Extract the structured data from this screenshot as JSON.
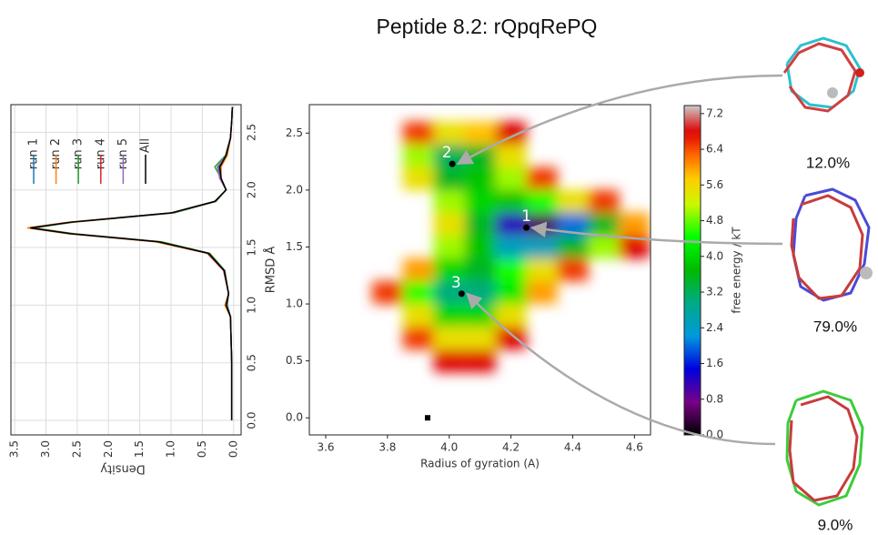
{
  "chart_data": [
    {
      "type": "line",
      "orientation": "rotated",
      "ylabel": "Density",
      "x": [
        0,
        0.5,
        0.9,
        1.0,
        1.1,
        1.3,
        1.45,
        1.55,
        1.62,
        1.67,
        1.72,
        1.8,
        1.9,
        2.0,
        2.1,
        2.2,
        2.3,
        2.45,
        2.6,
        2.72
      ],
      "series": [
        {
          "name": "run 1",
          "color": "#1f77b4",
          "values": [
            0.03,
            0.03,
            0.05,
            0.1,
            0.08,
            0.15,
            0.4,
            1.2,
            2.6,
            3.2,
            2.6,
            1.0,
            0.3,
            0.12,
            0.22,
            0.24,
            0.12,
            0.05,
            0.03,
            0.02
          ]
        },
        {
          "name": "run 2",
          "color": "#ff7f0e",
          "values": [
            0.03,
            0.03,
            0.05,
            0.14,
            0.08,
            0.15,
            0.42,
            1.25,
            2.65,
            3.3,
            2.65,
            1.0,
            0.3,
            0.12,
            0.2,
            0.2,
            0.1,
            0.05,
            0.03,
            0.02
          ]
        },
        {
          "name": "run 3",
          "color": "#2ca02c",
          "values": [
            0.03,
            0.03,
            0.05,
            0.11,
            0.08,
            0.14,
            0.38,
            1.15,
            2.55,
            3.2,
            2.55,
            0.95,
            0.28,
            0.12,
            0.2,
            0.3,
            0.13,
            0.05,
            0.03,
            0.02
          ]
        },
        {
          "name": "run 4",
          "color": "#d62728",
          "values": [
            0.03,
            0.03,
            0.05,
            0.12,
            0.08,
            0.16,
            0.42,
            1.2,
            2.6,
            3.25,
            2.6,
            1.0,
            0.3,
            0.12,
            0.2,
            0.22,
            0.12,
            0.05,
            0.03,
            0.02
          ]
        },
        {
          "name": "run 5",
          "color": "#9467bd",
          "values": [
            0.03,
            0.03,
            0.05,
            0.12,
            0.08,
            0.15,
            0.4,
            1.2,
            2.6,
            3.25,
            2.6,
            1.0,
            0.3,
            0.12,
            0.22,
            0.26,
            0.12,
            0.05,
            0.03,
            0.02
          ]
        },
        {
          "name": "All",
          "color": "#000000",
          "values": [
            0.03,
            0.03,
            0.05,
            0.12,
            0.08,
            0.15,
            0.4,
            1.2,
            2.6,
            3.25,
            2.6,
            1.0,
            0.3,
            0.12,
            0.2,
            0.22,
            0.12,
            0.05,
            0.03,
            0.02
          ]
        }
      ],
      "xlim": [
        -0.126,
        2.74
      ],
      "xticks": [
        {
          "value": 0,
          "label": "0.0"
        },
        0.5,
        {
          "value": 1,
          "label": "1.0"
        },
        1.5,
        {
          "value": 2,
          "label": "2.0"
        },
        2.5
      ],
      "ylim": [
        3.56,
        -0.12
      ],
      "yticks": [
        3.5,
        {
          "value": 3,
          "label": "3.0"
        },
        2.5,
        {
          "value": 2,
          "label": "2.0"
        },
        1.5,
        {
          "value": 1,
          "label": "1.0"
        },
        0.5,
        {
          "value": 0,
          "label": "0.0"
        }
      ],
      "grid": true
    },
    {
      "type": "heatmap",
      "title": "Peptide 8.2: rQpqRePQ",
      "xlabel": "Radius of gyration (A)",
      "ylabel": "RMSD Å",
      "x": [
        3.8,
        3.9,
        4.0,
        4.1,
        4.2,
        4.3,
        4.4,
        4.5,
        4.6
      ],
      "y": [
        2.5,
        2.3,
        2.1,
        1.9,
        1.7,
        1.5,
        1.3,
        1.1,
        0.9,
        0.7,
        0.5
      ],
      "z": [
        [
          null,
          6.5,
          5.5,
          5.8,
          6.8,
          null,
          null,
          null,
          null
        ],
        [
          null,
          5.0,
          3.2,
          3.5,
          5.5,
          null,
          null,
          null,
          null
        ],
        [
          null,
          5.5,
          3.5,
          3.8,
          5.0,
          6.5,
          null,
          null,
          null
        ],
        [
          null,
          null,
          5.0,
          4.0,
          3.8,
          4.5,
          5.5,
          6.5,
          null
        ],
        [
          null,
          null,
          5.5,
          3.5,
          1.2,
          0.5,
          2.0,
          3.5,
          6.0
        ],
        [
          null,
          null,
          5.0,
          3.8,
          2.5,
          2.5,
          3.5,
          5.0,
          6.8
        ],
        [
          null,
          6.0,
          4.0,
          3.5,
          4.5,
          5.5,
          6.5,
          null,
          null
        ],
        [
          6.5,
          4.5,
          3.0,
          3.0,
          4.2,
          6.0,
          null,
          null,
          null
        ],
        [
          null,
          5.5,
          4.0,
          4.0,
          5.5,
          null,
          null,
          null,
          null
        ],
        [
          null,
          6.5,
          5.5,
          5.5,
          6.8,
          null,
          null,
          null,
          null
        ],
        [
          null,
          null,
          6.8,
          6.8,
          null,
          null,
          null,
          null,
          null
        ]
      ],
      "xlim": [
        3.547,
        4.652
      ],
      "xticks": [
        3.6,
        3.8,
        {
          "value": 4,
          "label": "4.0"
        },
        4.2,
        4.4,
        4.6
      ],
      "ylim": [
        -0.15,
        2.75
      ],
      "yticks": [
        {
          "value": 0,
          "label": "0.0"
        },
        0.5,
        {
          "value": 1,
          "label": "1.0"
        },
        1.5,
        {
          "value": 2,
          "label": "2.0"
        },
        2.5
      ],
      "colormap": "nipy_spectral",
      "colorbar": {
        "label": "free energy / kT",
        "lim": [
          0,
          7.38
        ],
        "ticks": [
          {
            "value": 0,
            "label": "0.0"
          },
          0.8,
          1.6,
          2.4,
          3.2,
          {
            "value": 4,
            "label": "4.0"
          },
          4.8,
          5.6,
          6.4,
          7.2
        ]
      },
      "reference": {
        "x": 3.93,
        "y": 0.0
      },
      "clusters": {
        "names": [
          "2",
          "1",
          "3"
        ],
        "x": [
          4.01,
          4.25,
          4.04
        ],
        "y": [
          2.23,
          1.67,
          1.09
        ],
        "values": [
          12.0,
          79.0,
          9.0
        ],
        "value_labels": [
          "12.0%",
          "79.0%",
          "9.0%"
        ]
      }
    }
  ]
}
